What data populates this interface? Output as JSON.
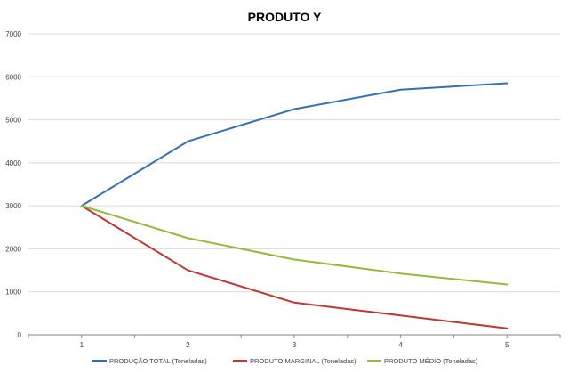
{
  "chart_data": {
    "type": "line",
    "title": "PRODUTO Y",
    "xlabel": "",
    "ylabel": "",
    "x": [
      1,
      2,
      3,
      4,
      5
    ],
    "ylim": [
      0,
      7000
    ],
    "y_ticks": [
      0,
      1000,
      2000,
      3000,
      4000,
      5000,
      6000,
      7000
    ],
    "grid": "horizontal",
    "legend_position": "bottom",
    "series": [
      {
        "name": "PRODUÇÃO TOTAL (Toneladas)",
        "color": "#3670B2",
        "values": [
          3000,
          4500,
          5250,
          5700,
          5850
        ]
      },
      {
        "name": "PRODUTO MARGINAL (Toneladas)",
        "color": "#BE3633",
        "values": [
          3000,
          1500,
          750,
          450,
          150
        ]
      },
      {
        "name": "PRODUTO MÉDIO (Toneladas)",
        "color": "#95B83F",
        "values": [
          3000,
          2250,
          1750,
          1425,
          1170
        ]
      }
    ]
  }
}
